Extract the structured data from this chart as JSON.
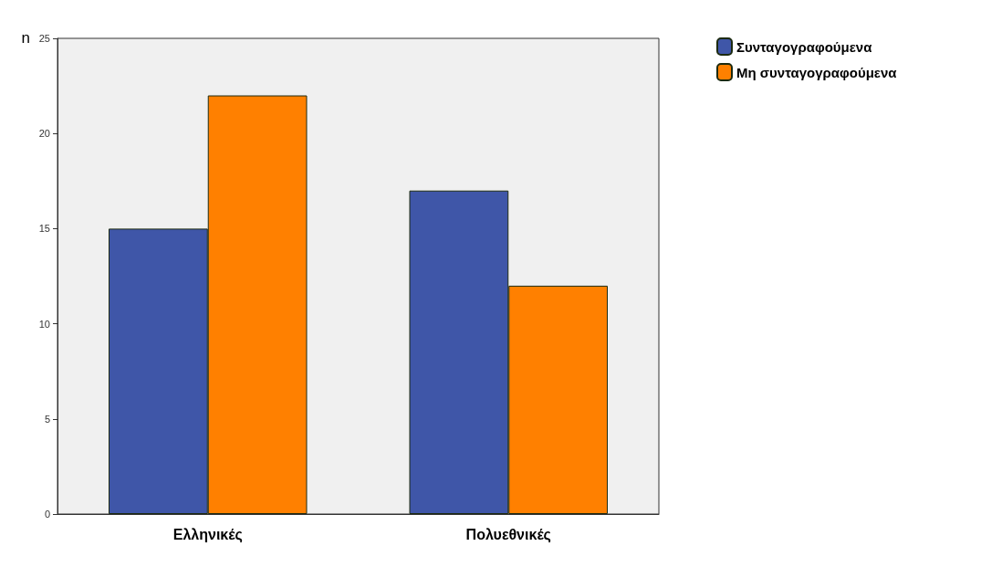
{
  "chart_data": {
    "type": "bar",
    "ylabel": "n",
    "categories": [
      "Ελληνικές",
      "Πολυεθνικές"
    ],
    "series": [
      {
        "name": "Συνταγογραφούμενα",
        "color": "#3f56a8",
        "values": [
          15,
          17
        ]
      },
      {
        "name": "Μη συνταγογραφούμενα",
        "color": "#ff8000",
        "values": [
          22,
          12
        ]
      }
    ],
    "ylim": [
      0,
      25
    ],
    "yticks": [
      0,
      5,
      10,
      15,
      20,
      25
    ],
    "grid": false,
    "legend": "top right"
  }
}
